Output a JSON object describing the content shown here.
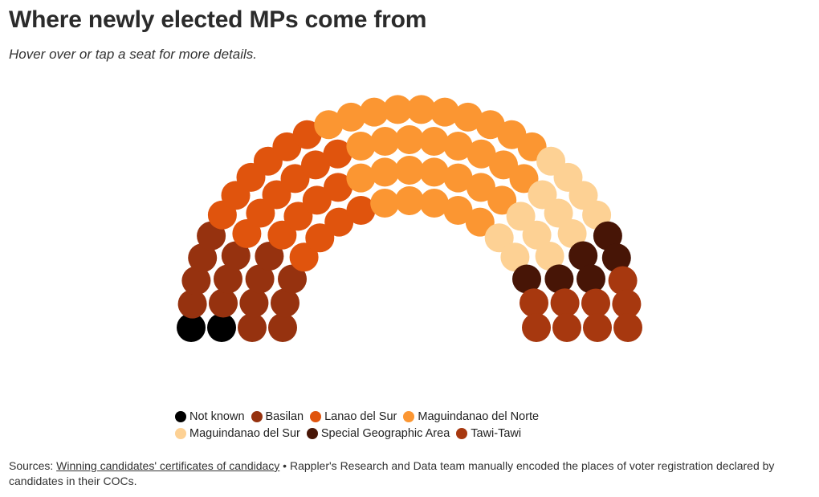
{
  "title": "Where newly elected MPs come from",
  "subtitle": "Hover over or tap a seat for more details.",
  "chart_data": {
    "type": "parliament",
    "categories": [
      "Not known",
      "Basilan",
      "Lanao del Sur",
      "Maguindanao del Norte",
      "Maguindanao del Sur",
      "Special Geographic Area",
      "Tawi-Tawi"
    ],
    "colors": [
      "#000000",
      "#96320f",
      "#e0540d",
      "#fb9632",
      "#fdd194",
      "#471506",
      "#a7380f"
    ],
    "seat_counts": [
      2,
      14,
      20,
      30,
      12,
      6,
      9
    ],
    "rows": 4,
    "total_seats": 93,
    "legend_position": "bottom"
  },
  "sources": {
    "prefix": "Sources: ",
    "link_text": "Winning candidates' certificates of candidacy",
    "rest": " • Rappler's Research and Data team manually encoded the places of voter registration declared by candidates in their COCs."
  }
}
